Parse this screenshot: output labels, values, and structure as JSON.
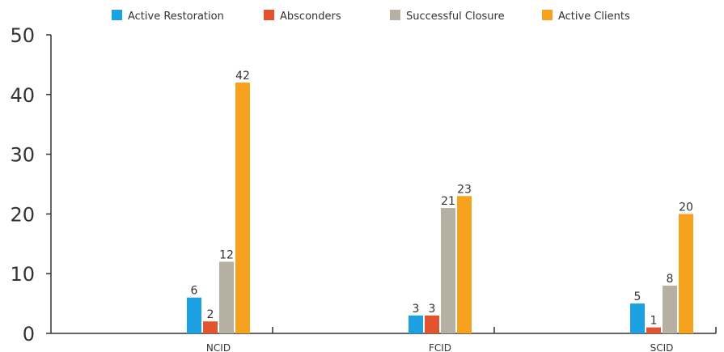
{
  "chart_data": {
    "type": "bar",
    "title": "",
    "xlabel": "",
    "ylabel": "",
    "categories": [
      "NCID",
      "FCID",
      "SCID"
    ],
    "series": [
      {
        "name": "Active Restoration",
        "color": "#1ba1e2",
        "values": [
          6,
          3,
          5
        ]
      },
      {
        "name": "Absconders",
        "color": "#e2532e",
        "values": [
          2,
          3,
          1
        ]
      },
      {
        "name": "Successful Closure",
        "color": "#b5b0a2",
        "values": [
          12,
          21,
          8
        ]
      },
      {
        "name": "Active Clients",
        "color": "#f6a21e",
        "values": [
          42,
          23,
          20
        ]
      }
    ],
    "ylim": [
      0,
      50
    ],
    "yticks": [
      "0",
      "10",
      "20",
      "30",
      "40",
      "50"
    ],
    "grid": false,
    "legend_position": "top",
    "data_labels": true
  }
}
